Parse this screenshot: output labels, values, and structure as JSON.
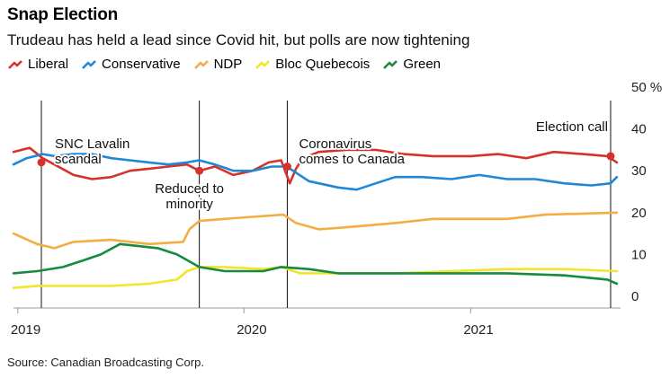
{
  "title": "Snap Election",
  "subtitle": "Trudeau has held a lead since Covid hit, but polls are now tightening",
  "source": "Source: Canadian Broadcasting Corp.",
  "chart_data": {
    "type": "line",
    "y_unit_label": "50 %",
    "ylim": [
      0,
      50
    ],
    "y_ticks": [
      {
        "value": 0,
        "label": "0"
      },
      {
        "value": 10,
        "label": "10"
      },
      {
        "value": 20,
        "label": "20"
      },
      {
        "value": 30,
        "label": "30"
      },
      {
        "value": 40,
        "label": "40"
      },
      {
        "value": 50,
        "label": "50 %"
      }
    ],
    "x_range": [
      "2018-12-25",
      "2021-08-31"
    ],
    "x_ticks": [
      {
        "date": "2019-01-01",
        "label": "2019"
      },
      {
        "date": "2020-01-01",
        "label": "2020"
      },
      {
        "date": "2021-01-01",
        "label": "2021"
      }
    ],
    "series": [
      {
        "name": "Liberal",
        "color": "#d6322b",
        "points": [
          [
            "2018-12-25",
            34.5
          ],
          [
            "2019-01-20",
            35.5
          ],
          [
            "2019-02-10",
            33
          ],
          [
            "2019-03-01",
            31.5
          ],
          [
            "2019-04-01",
            29
          ],
          [
            "2019-05-01",
            28
          ],
          [
            "2019-06-01",
            28.5
          ],
          [
            "2019-07-01",
            30
          ],
          [
            "2019-08-01",
            30.5
          ],
          [
            "2019-09-01",
            31
          ],
          [
            "2019-10-01",
            31.5
          ],
          [
            "2019-10-21",
            30
          ],
          [
            "2019-11-15",
            31
          ],
          [
            "2019-12-15",
            29
          ],
          [
            "2020-01-15",
            30
          ],
          [
            "2020-02-10",
            32
          ],
          [
            "2020-03-01",
            32.5
          ],
          [
            "2020-03-15",
            27
          ],
          [
            "2020-03-25",
            30.5
          ],
          [
            "2020-04-05",
            33
          ],
          [
            "2020-05-01",
            34.5
          ],
          [
            "2020-06-15",
            35
          ],
          [
            "2020-08-01",
            35
          ],
          [
            "2020-09-15",
            34
          ],
          [
            "2020-11-01",
            33.5
          ],
          [
            "2021-01-01",
            33.5
          ],
          [
            "2021-02-15",
            34
          ],
          [
            "2021-04-01",
            33
          ],
          [
            "2021-05-15",
            34.5
          ],
          [
            "2021-07-01",
            34
          ],
          [
            "2021-08-10",
            33.5
          ],
          [
            "2021-08-25",
            32
          ]
        ]
      },
      {
        "name": "Conservative",
        "color": "#1f87d6",
        "points": [
          [
            "2018-12-25",
            31.5
          ],
          [
            "2019-01-15",
            33
          ],
          [
            "2019-02-10",
            34
          ],
          [
            "2019-03-01",
            33.5
          ],
          [
            "2019-04-01",
            34
          ],
          [
            "2019-05-01",
            34
          ],
          [
            "2019-06-01",
            33
          ],
          [
            "2019-07-01",
            32.5
          ],
          [
            "2019-08-01",
            32
          ],
          [
            "2019-09-01",
            31.5
          ],
          [
            "2019-10-01",
            32
          ],
          [
            "2019-10-21",
            32.5
          ],
          [
            "2019-11-15",
            31.5
          ],
          [
            "2019-12-15",
            30
          ],
          [
            "2020-01-15",
            30
          ],
          [
            "2020-02-15",
            31
          ],
          [
            "2020-03-10",
            31
          ],
          [
            "2020-04-15",
            27.5
          ],
          [
            "2020-06-01",
            26
          ],
          [
            "2020-07-01",
            25.5
          ],
          [
            "2020-08-01",
            27
          ],
          [
            "2020-09-01",
            28.5
          ],
          [
            "2020-10-15",
            28.5
          ],
          [
            "2020-12-01",
            28
          ],
          [
            "2021-01-15",
            29
          ],
          [
            "2021-03-01",
            28
          ],
          [
            "2021-04-15",
            28
          ],
          [
            "2021-06-01",
            27
          ],
          [
            "2021-07-15",
            26.5
          ],
          [
            "2021-08-15",
            27
          ],
          [
            "2021-08-25",
            28.5
          ]
        ]
      },
      {
        "name": "NDP",
        "color": "#f2ae42",
        "points": [
          [
            "2018-12-25",
            15
          ],
          [
            "2019-02-01",
            12.5
          ],
          [
            "2019-03-01",
            11.5
          ],
          [
            "2019-04-01",
            13
          ],
          [
            "2019-06-01",
            13.5
          ],
          [
            "2019-08-01",
            12.5
          ],
          [
            "2019-09-25",
            13
          ],
          [
            "2019-10-05",
            16
          ],
          [
            "2019-10-21",
            18
          ],
          [
            "2019-12-01",
            18.5
          ],
          [
            "2020-01-15",
            19
          ],
          [
            "2020-03-05",
            19.5
          ],
          [
            "2020-03-25",
            17.5
          ],
          [
            "2020-05-01",
            16
          ],
          [
            "2020-06-15",
            16.5
          ],
          [
            "2020-09-01",
            17.5
          ],
          [
            "2020-11-01",
            18.5
          ],
          [
            "2021-01-01",
            18.5
          ],
          [
            "2021-03-01",
            18.5
          ],
          [
            "2021-05-01",
            19.5
          ],
          [
            "2021-08-25",
            20
          ]
        ]
      },
      {
        "name": "Bloc Quebecois",
        "color": "#f2e52a",
        "points": [
          [
            "2018-12-25",
            2
          ],
          [
            "2019-02-01",
            2.5
          ],
          [
            "2019-04-01",
            2.5
          ],
          [
            "2019-06-01",
            2.5
          ],
          [
            "2019-08-01",
            3
          ],
          [
            "2019-09-15",
            4
          ],
          [
            "2019-10-01",
            6
          ],
          [
            "2019-10-21",
            7
          ],
          [
            "2019-12-01",
            7
          ],
          [
            "2020-02-01",
            6.5
          ],
          [
            "2020-03-01",
            7
          ],
          [
            "2020-04-01",
            5.5
          ],
          [
            "2020-06-01",
            5.5
          ],
          [
            "2020-09-01",
            5.5
          ],
          [
            "2020-12-01",
            6
          ],
          [
            "2021-03-01",
            6.5
          ],
          [
            "2021-06-01",
            6.5
          ],
          [
            "2021-08-25",
            6
          ]
        ]
      },
      {
        "name": "Green",
        "color": "#168a3e",
        "points": [
          [
            "2018-12-25",
            5.5
          ],
          [
            "2019-02-01",
            6
          ],
          [
            "2019-03-15",
            7
          ],
          [
            "2019-04-15",
            8.5
          ],
          [
            "2019-05-15",
            10
          ],
          [
            "2019-06-15",
            12.5
          ],
          [
            "2019-07-15",
            12
          ],
          [
            "2019-08-15",
            11.5
          ],
          [
            "2019-09-15",
            10
          ],
          [
            "2019-10-21",
            7
          ],
          [
            "2019-12-01",
            6
          ],
          [
            "2020-02-01",
            6
          ],
          [
            "2020-03-01",
            7
          ],
          [
            "2020-04-15",
            6.5
          ],
          [
            "2020-06-01",
            5.5
          ],
          [
            "2020-09-01",
            5.5
          ],
          [
            "2020-12-01",
            5.5
          ],
          [
            "2021-03-01",
            5.5
          ],
          [
            "2021-06-01",
            5
          ],
          [
            "2021-08-10",
            4
          ],
          [
            "2021-08-25",
            3
          ]
        ]
      }
    ],
    "markers": [
      {
        "date": "2019-02-08",
        "series": "Liberal",
        "value": 32
      },
      {
        "date": "2019-10-21",
        "series": "Liberal",
        "value": 30
      },
      {
        "date": "2020-03-11",
        "series": "Liberal",
        "value": 31
      },
      {
        "date": "2021-08-15",
        "series": "Liberal",
        "value": 33.5
      }
    ],
    "events": [
      {
        "date": "2019-02-08",
        "label_lines": [
          "SNC Lavalin",
          "scandal"
        ]
      },
      {
        "date": "2019-10-21",
        "label_lines": [
          "Reduced to",
          "minority"
        ]
      },
      {
        "date": "2020-03-11",
        "label_lines": [
          "Coronavirus",
          "comes to Canada"
        ]
      },
      {
        "date": "2021-08-15",
        "label_lines": [
          "Election call"
        ]
      }
    ],
    "grid": false,
    "legend_position": "top-left"
  }
}
